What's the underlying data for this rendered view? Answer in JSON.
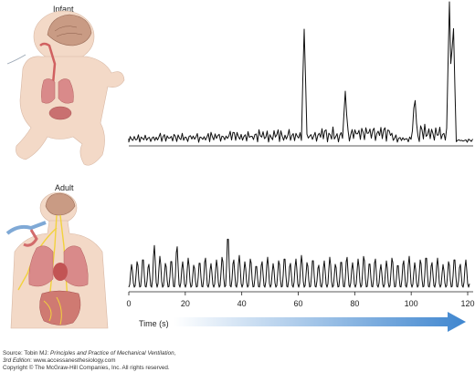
{
  "panels": {
    "infant": {
      "label": "Infant"
    },
    "adult": {
      "label": "Adult"
    }
  },
  "time_axis": {
    "title": "Time (s)",
    "ticks": [
      "0",
      "20",
      "40",
      "60",
      "80",
      "100",
      "120"
    ]
  },
  "source": {
    "prefix": "Source: Tobin MJ: ",
    "book": "Principles and Practice of Mechanical Ventilation",
    "suffix": ",",
    "edition": "3rd Edition",
    "url": ": www.accessanesthesiology.com",
    "copyright": "Copyright © The McGraw-Hill Companies, Inc. All rights reserved."
  },
  "colors": {
    "trace": "#111111",
    "arrow_start": "#ffffff",
    "arrow_end": "#3f86cf",
    "skin": "#f3d9c7",
    "lung": "#d98a8a",
    "brain": "#c99b84",
    "nerve": "#f2d23c",
    "tube": "#7fa9d6"
  }
}
